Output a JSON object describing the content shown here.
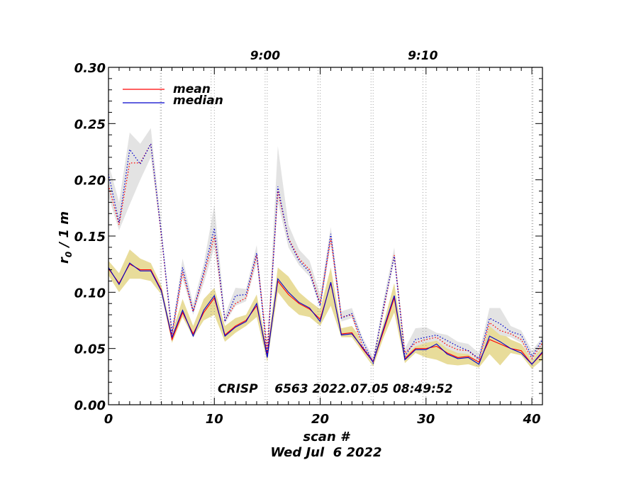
{
  "chart_data": {
    "type": "line",
    "title": "CRISP    6563 2022.07.05 08:49:52",
    "xlabel": "scan #",
    "date_label": "Wed Jul  6 2022",
    "ylabel_main": "r",
    "ylabel_sub": "0",
    "ylabel_tail": " / 1 m",
    "xlim": [
      0,
      41
    ],
    "ylim": [
      0,
      0.3
    ],
    "x_ticks": [
      0,
      10,
      20,
      30,
      40
    ],
    "x_tick_labels": [
      "0",
      "10",
      "20",
      "30",
      "40"
    ],
    "y_ticks": [
      0.0,
      0.05,
      0.1,
      0.15,
      0.2,
      0.25,
      0.3
    ],
    "y_tick_labels": [
      "0.00",
      "0.05",
      "0.10",
      "0.15",
      "0.20",
      "0.25",
      "0.30"
    ],
    "top_time_labels": [
      {
        "label": "9:00",
        "x": 14.8
      },
      {
        "label": "9:10",
        "x": 29.7
      }
    ],
    "vertical_dotted_lines": [
      5,
      10,
      15,
      20,
      25,
      30,
      35,
      40,
      4.9,
      9.7,
      14.8,
      19.8,
      24.8,
      29.7,
      34.8,
      40.1
    ],
    "legend": [
      {
        "name": "mean",
        "color": "#ff0000"
      },
      {
        "name": "median",
        "color": "#0000cc"
      }
    ],
    "colors": {
      "mean": "#ff0000",
      "median": "#0000cc",
      "band_low": "#e8dc9a",
      "band_high": "#e3e3e3"
    },
    "x": [
      0,
      1,
      2,
      3,
      4,
      5,
      6,
      7,
      8,
      9,
      10,
      11,
      12,
      13,
      14,
      15,
      16,
      17,
      18,
      19,
      20,
      21,
      22,
      23,
      24,
      25,
      26,
      27,
      28,
      29,
      30,
      31,
      32,
      33,
      34,
      35,
      36,
      37,
      38,
      39,
      40,
      41
    ],
    "series": [
      {
        "name": "mean_low",
        "style": "solid",
        "color": "#ff0000",
        "values": [
          0.121,
          0.108,
          0.125,
          0.12,
          0.12,
          0.102,
          0.058,
          0.082,
          0.063,
          0.082,
          0.095,
          0.062,
          0.07,
          0.075,
          0.088,
          0.045,
          0.11,
          0.098,
          0.09,
          0.085,
          0.076,
          0.108,
          0.063,
          0.064,
          0.05,
          0.038,
          0.066,
          0.095,
          0.041,
          0.05,
          0.05,
          0.052,
          0.046,
          0.042,
          0.043,
          0.038,
          0.058,
          0.054,
          0.05,
          0.048,
          0.036,
          0.046
        ]
      },
      {
        "name": "median_low",
        "style": "solid",
        "color": "#0000cc",
        "values": [
          0.122,
          0.107,
          0.126,
          0.119,
          0.119,
          0.101,
          0.06,
          0.084,
          0.061,
          0.084,
          0.097,
          0.061,
          0.069,
          0.074,
          0.09,
          0.042,
          0.112,
          0.1,
          0.091,
          0.086,
          0.074,
          0.109,
          0.062,
          0.063,
          0.051,
          0.038,
          0.068,
          0.097,
          0.04,
          0.049,
          0.049,
          0.054,
          0.045,
          0.041,
          0.042,
          0.036,
          0.061,
          0.056,
          0.05,
          0.046,
          0.036,
          0.047
        ]
      },
      {
        "name": "mean_high",
        "style": "dotted",
        "color": "#ff0000",
        "values": [
          0.195,
          0.16,
          0.215,
          0.215,
          0.232,
          0.15,
          0.062,
          0.118,
          0.083,
          0.115,
          0.15,
          0.075,
          0.09,
          0.095,
          0.133,
          0.05,
          0.19,
          0.148,
          0.13,
          0.12,
          0.09,
          0.148,
          0.078,
          0.08,
          0.052,
          0.039,
          0.085,
          0.133,
          0.046,
          0.055,
          0.058,
          0.06,
          0.053,
          0.049,
          0.048,
          0.04,
          0.073,
          0.066,
          0.063,
          0.058,
          0.041,
          0.055
        ]
      },
      {
        "name": "median_high",
        "style": "dotted",
        "color": "#0000cc",
        "values": [
          0.205,
          0.162,
          0.227,
          0.214,
          0.232,
          0.152,
          0.064,
          0.122,
          0.083,
          0.118,
          0.157,
          0.074,
          0.097,
          0.098,
          0.135,
          0.043,
          0.194,
          0.147,
          0.128,
          0.118,
          0.088,
          0.152,
          0.077,
          0.081,
          0.057,
          0.037,
          0.088,
          0.132,
          0.043,
          0.058,
          0.06,
          0.062,
          0.057,
          0.052,
          0.048,
          0.041,
          0.077,
          0.072,
          0.065,
          0.062,
          0.043,
          0.058
        ]
      }
    ],
    "bands": [
      {
        "name": "low_band",
        "lower": [
          0.115,
          0.1,
          0.112,
          0.112,
          0.11,
          0.098,
          0.055,
          0.078,
          0.06,
          0.075,
          0.08,
          0.056,
          0.064,
          0.07,
          0.078,
          0.038,
          0.1,
          0.088,
          0.08,
          0.078,
          0.07,
          0.088,
          0.06,
          0.06,
          0.047,
          0.034,
          0.06,
          0.082,
          0.037,
          0.046,
          0.042,
          0.04,
          0.036,
          0.035,
          0.036,
          0.033,
          0.045,
          0.035,
          0.046,
          0.044,
          0.032,
          0.04
        ],
        "upper": [
          0.128,
          0.117,
          0.138,
          0.13,
          0.126,
          0.106,
          0.064,
          0.094,
          0.07,
          0.094,
          0.104,
          0.07,
          0.077,
          0.08,
          0.098,
          0.05,
          0.122,
          0.114,
          0.1,
          0.092,
          0.085,
          0.122,
          0.068,
          0.07,
          0.057,
          0.042,
          0.073,
          0.108,
          0.046,
          0.056,
          0.055,
          0.058,
          0.052,
          0.048,
          0.05,
          0.042,
          0.07,
          0.065,
          0.058,
          0.054,
          0.041,
          0.052
        ]
      },
      {
        "name": "high_band",
        "lower": [
          0.185,
          0.155,
          0.178,
          0.2,
          0.22,
          0.148,
          0.058,
          0.112,
          0.08,
          0.108,
          0.14,
          0.072,
          0.088,
          0.092,
          0.126,
          0.046,
          0.18,
          0.14,
          0.124,
          0.114,
          0.086,
          0.142,
          0.074,
          0.077,
          0.05,
          0.036,
          0.082,
          0.128,
          0.044,
          0.052,
          0.055,
          0.057,
          0.05,
          0.046,
          0.045,
          0.038,
          0.07,
          0.062,
          0.06,
          0.055,
          0.039,
          0.052
        ],
        "upper": [
          0.215,
          0.18,
          0.242,
          0.232,
          0.246,
          0.158,
          0.068,
          0.13,
          0.09,
          0.125,
          0.178,
          0.08,
          0.104,
          0.103,
          0.142,
          0.051,
          0.23,
          0.16,
          0.138,
          0.128,
          0.098,
          0.158,
          0.083,
          0.086,
          0.06,
          0.042,
          0.094,
          0.14,
          0.05,
          0.068,
          0.069,
          0.064,
          0.062,
          0.056,
          0.054,
          0.046,
          0.086,
          0.086,
          0.07,
          0.066,
          0.048,
          0.06
        ]
      }
    ]
  }
}
